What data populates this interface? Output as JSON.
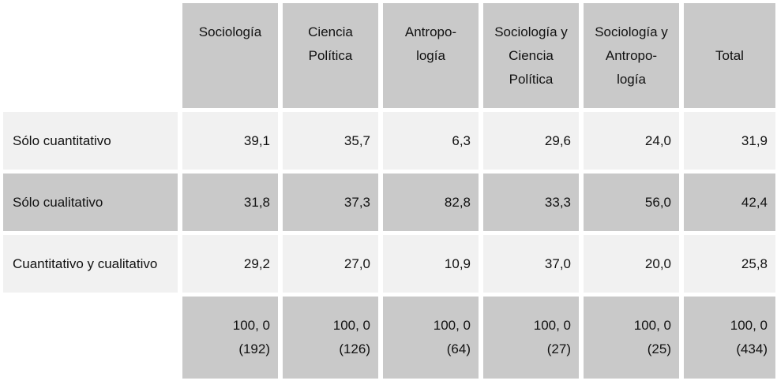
{
  "table": {
    "headers": [
      [
        "Sociología"
      ],
      [
        "Ciencia",
        "Política"
      ],
      [
        "Antropo-",
        "logía"
      ],
      [
        "Sociología y",
        "Ciencia",
        "Política"
      ],
      [
        "Sociología y",
        "Antropo-",
        "logía"
      ],
      [
        "Total"
      ]
    ],
    "rows": [
      {
        "label": "Sólo cuantitativo",
        "values": [
          "39,1",
          "35,7",
          "6,3",
          "29,6",
          "24,0",
          "31,9"
        ]
      },
      {
        "label": "Sólo cualitativo",
        "values": [
          "31,8",
          "37,3",
          "82,8",
          "33,3",
          "56,0",
          "42,4"
        ]
      },
      {
        "label": "Cuantitativo y cualitativo",
        "values": [
          "29,2",
          "27,0",
          "10,9",
          "37,0",
          "20,0",
          "25,8"
        ]
      }
    ],
    "totals": {
      "percent": [
        "100, 0",
        "100, 0",
        "100, 0",
        "100, 0",
        "100, 0",
        "100, 0"
      ],
      "n": [
        "(192)",
        "(126)",
        "(64)",
        "(27)",
        "(25)",
        "(434)"
      ]
    }
  },
  "colors": {
    "dark_cell": "#c9c9c9",
    "light_cell": "#f1f1f1",
    "background": "#ffffff"
  }
}
